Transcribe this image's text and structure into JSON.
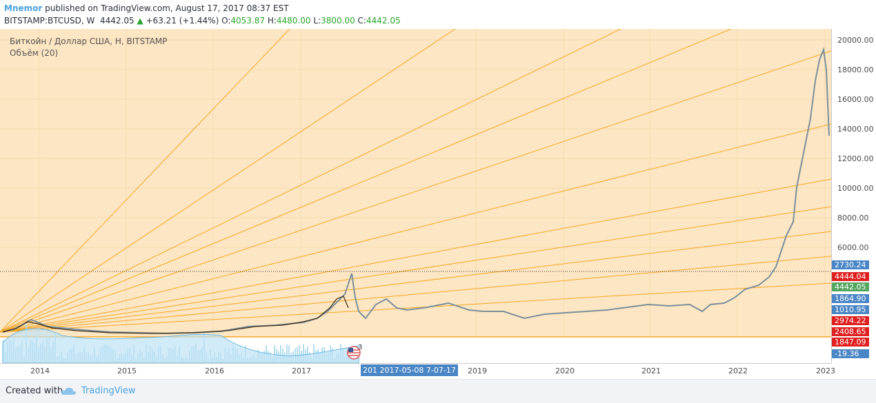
{
  "header": {
    "author": "Mnemor",
    "published_text": "published on TradingView.com, August 17, 2017 08:37 EST",
    "symbol": "BITSTAMP:BTCUSD, W",
    "last": "4442.05",
    "change_arrow": "▲",
    "change": "+63.21 (+1.44%)",
    "o_label": "O:",
    "o_value": "4053.87",
    "h_label": "H:",
    "h_value": "4480.00",
    "l_label": "L:",
    "l_value": "3800.00",
    "c_label": "C:",
    "c_value": "4442.05"
  },
  "legend": {
    "title": "Биткойн / Доллар США, H, BITSTAMP",
    "volume": "Объём (20)"
  },
  "price_axis": {
    "ticks": [
      "20000.00",
      "18000.00",
      "16000.00",
      "14000.00",
      "12000.00",
      "10000.00",
      "8000.00",
      "6000.00"
    ],
    "labels": [
      {
        "text": "2730.24",
        "color": "#4a86c5"
      },
      {
        "text": "4444.04",
        "color": "#e02020"
      },
      {
        "text": "4442.05",
        "color": "#53a65f"
      },
      {
        "text": "1864.90",
        "color": "#4a86c5"
      },
      {
        "text": "1010.95",
        "color": "#4a86c5"
      },
      {
        "text": "2974.22",
        "color": "#e02020"
      },
      {
        "text": "2408.65",
        "color": "#e02020"
      },
      {
        "text": "1847.09",
        "color": "#e02020"
      },
      {
        "text": "-19.36",
        "color": "#4a86c5"
      }
    ]
  },
  "time_axis": {
    "ticks": [
      "2014",
      "2015",
      "2016",
      "2017",
      "2019",
      "2020",
      "2021",
      "2022",
      "2023"
    ],
    "range_label": "201 2017-05-08 7-07-17"
  },
  "event_badge": {
    "count": "3"
  },
  "footer": {
    "created_with": "Created with",
    "brand": "TradingView"
  },
  "colors": {
    "background_fill": "#fde6c3",
    "fan_lines": "#f5a623",
    "price_line": "#7a8f9a",
    "volume_bars": "#a8d8ea",
    "accent": "#4aa1de"
  }
}
